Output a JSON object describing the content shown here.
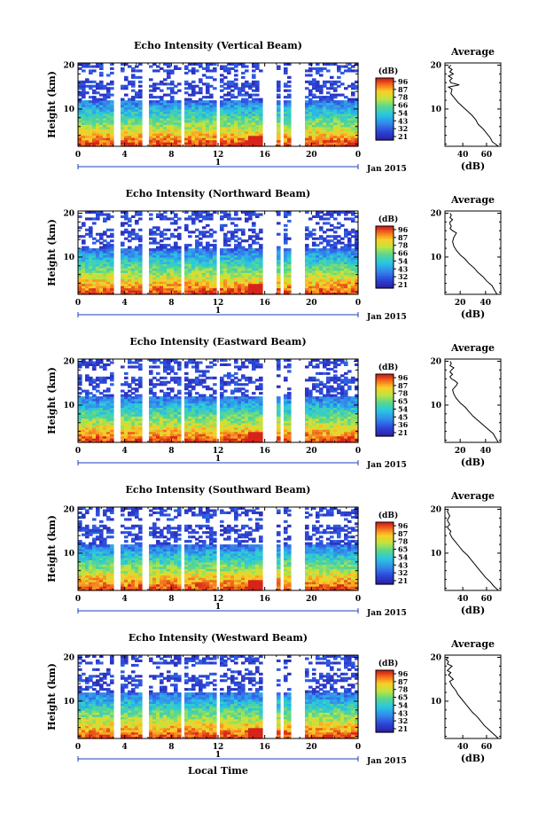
{
  "chart_data": [
    {
      "type": "heatmap",
      "title": "Echo Intensity (Vertical Beam)",
      "ylabel": "Height (km)",
      "xlabel": "",
      "x_ticks": [
        "0",
        "4",
        "8",
        "12",
        "16",
        "20",
        "0"
      ],
      "y_ticks": [
        "10",
        "20"
      ],
      "xlim": [
        0,
        24
      ],
      "ylim": [
        1.5,
        20.5
      ],
      "day_label": "1",
      "month_label": "Jan 2015",
      "gaps": [
        [
          3.1,
          3.6
        ],
        [
          5.6,
          6.1
        ],
        [
          8.8,
          9.2
        ],
        [
          12.0,
          12.3
        ],
        [
          15.9,
          17.1
        ],
        [
          17.4,
          17.6
        ],
        [
          17.8,
          18.0
        ],
        [
          18.3,
          19.3
        ]
      ],
      "colorbar": {
        "unit": "(dB)",
        "ticks": [
          "96",
          "87",
          "78",
          "66",
          "54",
          "43",
          "32",
          "21"
        ]
      },
      "average": {
        "title": "Average",
        "xlabel": "(dB)",
        "x_ticks": [
          "40",
          "60"
        ],
        "xlim": [
          25,
          72
        ],
        "y_ticks": [
          "10",
          "20"
        ],
        "height": [
          1.5,
          2.5,
          3.5,
          4.5,
          5.5,
          6.5,
          7.5,
          8.5,
          9.5,
          10.5,
          11.5,
          12.5,
          13.5,
          14.5,
          15.0,
          15.5,
          16.0,
          16.5,
          17.0,
          17.5,
          18.0,
          18.5,
          19.0,
          19.5,
          20.0
        ],
        "intensity": [
          70,
          65,
          63,
          60,
          57,
          53,
          51,
          48,
          44,
          40,
          36,
          33,
          30,
          31,
          28,
          37,
          30,
          29,
          31,
          28,
          32,
          29,
          31,
          28,
          30
        ]
      }
    },
    {
      "type": "heatmap",
      "title": "Echo Intensity (Northward Beam)",
      "ylabel": "Height (km)",
      "xlabel": "",
      "x_ticks": [
        "0",
        "4",
        "8",
        "12",
        "16",
        "20",
        "0"
      ],
      "y_ticks": [
        "10",
        "20"
      ],
      "xlim": [
        0,
        24
      ],
      "ylim": [
        1.5,
        20.5
      ],
      "day_label": "1",
      "month_label": "Jan 2015",
      "gaps": [
        [
          3.1,
          3.6
        ],
        [
          5.6,
          6.1
        ],
        [
          8.8,
          9.2
        ],
        [
          12.0,
          12.3
        ],
        [
          15.9,
          17.1
        ],
        [
          17.4,
          17.6
        ],
        [
          17.8,
          18.0
        ],
        [
          18.3,
          19.3
        ]
      ],
      "colorbar": {
        "unit": "(dB)",
        "ticks": [
          "96",
          "87",
          "78",
          "66",
          "54",
          "43",
          "32",
          "21"
        ]
      },
      "average": {
        "title": "Average",
        "xlabel": "(dB)",
        "x_ticks": [
          "20",
          "40"
        ],
        "xlim": [
          8,
          52
        ],
        "y_ticks": [
          "10",
          "20"
        ],
        "height": [
          1.5,
          2.5,
          3.5,
          4.5,
          5.5,
          6.5,
          7.5,
          8.5,
          9.5,
          10.5,
          11.5,
          12.5,
          13.5,
          14.5,
          15.0,
          15.5,
          16.0,
          16.5,
          17.0,
          17.5,
          18.0,
          18.5,
          19.0,
          19.5,
          20.0
        ],
        "intensity": [
          49,
          47,
          45,
          41,
          38,
          34,
          31,
          27,
          24,
          20,
          17,
          15,
          14,
          15,
          16,
          17,
          14,
          12,
          13,
          12,
          12,
          14,
          12,
          13,
          12
        ]
      }
    },
    {
      "type": "heatmap",
      "title": "Echo Intensity (Eastward Beam)",
      "ylabel": "Height (km)",
      "xlabel": "",
      "x_ticks": [
        "0",
        "4",
        "8",
        "12",
        "16",
        "20",
        "0"
      ],
      "y_ticks": [
        "10",
        "20"
      ],
      "xlim": [
        0,
        24
      ],
      "ylim": [
        1.5,
        20.5
      ],
      "day_label": "1",
      "month_label": "Jan 2015",
      "gaps": [
        [
          3.1,
          3.6
        ],
        [
          5.6,
          6.1
        ],
        [
          8.8,
          9.2
        ],
        [
          12.0,
          12.3
        ],
        [
          15.9,
          17.1
        ],
        [
          17.4,
          17.6
        ],
        [
          17.8,
          18.0
        ],
        [
          18.3,
          19.3
        ]
      ],
      "colorbar": {
        "unit": "(dB)",
        "ticks": [
          "96",
          "87",
          "78",
          "65",
          "54",
          "45",
          "36",
          "21"
        ]
      },
      "average": {
        "title": "Average",
        "xlabel": "(dB)",
        "x_ticks": [
          "20",
          "40"
        ],
        "xlim": [
          8,
          52
        ],
        "y_ticks": [
          "10",
          "20"
        ],
        "height": [
          1.5,
          2.5,
          3.5,
          4.5,
          5.5,
          6.5,
          7.5,
          8.5,
          9.5,
          10.5,
          11.5,
          12.5,
          13.5,
          14.5,
          15.0,
          15.5,
          16.0,
          16.5,
          17.0,
          17.5,
          18.0,
          18.5,
          19.0,
          19.5,
          20.0
        ],
        "intensity": [
          50,
          48,
          46,
          42,
          38,
          34,
          30,
          27,
          24,
          20,
          17,
          15,
          14,
          17,
          18,
          16,
          13,
          12,
          14,
          12,
          13,
          15,
          12,
          13,
          12
        ]
      }
    },
    {
      "type": "heatmap",
      "title": "Echo Intensity (Southward Beam)",
      "ylabel": "Height (km)",
      "xlabel": "",
      "x_ticks": [
        "0",
        "4",
        "8",
        "12",
        "16",
        "20",
        "0"
      ],
      "y_ticks": [
        "10",
        "20"
      ],
      "xlim": [
        0,
        24
      ],
      "ylim": [
        1.5,
        20.5
      ],
      "day_label": "1",
      "month_label": "Jan 2015",
      "gaps": [
        [
          3.1,
          3.6
        ],
        [
          5.6,
          6.1
        ],
        [
          8.8,
          9.2
        ],
        [
          12.0,
          12.3
        ],
        [
          15.9,
          17.1
        ],
        [
          17.4,
          17.6
        ],
        [
          17.8,
          18.0
        ],
        [
          18.3,
          19.3
        ]
      ],
      "colorbar": {
        "unit": "(dB)",
        "ticks": [
          "96",
          "87",
          "78",
          "65",
          "54",
          "43",
          "32",
          "21"
        ]
      },
      "average": {
        "title": "Average",
        "xlabel": "(dB)",
        "x_ticks": [
          "40",
          "60"
        ],
        "xlim": [
          25,
          72
        ],
        "y_ticks": [
          "10",
          "20"
        ],
        "height": [
          1.5,
          2.5,
          3.5,
          4.5,
          5.5,
          6.5,
          7.5,
          8.5,
          9.5,
          10.5,
          11.5,
          12.5,
          13.5,
          14.5,
          15.0,
          15.5,
          16.0,
          16.5,
          17.0,
          17.5,
          18.0,
          18.5,
          19.0,
          19.5,
          20.0
        ],
        "intensity": [
          70,
          66,
          63,
          59,
          56,
          53,
          50,
          47,
          44,
          40,
          37,
          34,
          31,
          29,
          30,
          28,
          27,
          29,
          28,
          27,
          28,
          29,
          28,
          27,
          28
        ]
      }
    },
    {
      "type": "heatmap",
      "title": "Echo Intensity (Westward Beam)",
      "ylabel": "Height (km)",
      "xlabel": "Local Time",
      "x_ticks": [
        "0",
        "4",
        "8",
        "12",
        "16",
        "20",
        "0"
      ],
      "y_ticks": [
        "10",
        "20"
      ],
      "xlim": [
        0,
        24
      ],
      "ylim": [
        1.5,
        20.5
      ],
      "day_label": "1",
      "month_label": "Jan 2015",
      "gaps": [
        [
          3.1,
          3.6
        ],
        [
          5.6,
          6.1
        ],
        [
          8.8,
          9.2
        ],
        [
          12.0,
          12.3
        ],
        [
          15.9,
          17.1
        ],
        [
          17.4,
          17.6
        ],
        [
          17.8,
          18.0
        ],
        [
          18.3,
          19.3
        ]
      ],
      "colorbar": {
        "unit": "(dB)",
        "ticks": [
          "96",
          "87",
          "78",
          "65",
          "54",
          "43",
          "32",
          "21"
        ]
      },
      "average": {
        "title": "Average",
        "xlabel": "(dB)",
        "x_ticks": [
          "40",
          "60"
        ],
        "xlim": [
          25,
          72
        ],
        "y_ticks": [
          "10",
          "20"
        ],
        "height": [
          1.5,
          2.5,
          3.5,
          4.5,
          5.5,
          6.5,
          7.5,
          8.5,
          9.5,
          10.5,
          11.5,
          12.5,
          13.5,
          14.5,
          15.0,
          15.5,
          16.0,
          16.5,
          17.0,
          17.5,
          18.0,
          18.5,
          19.0,
          19.5,
          20.0
        ],
        "intensity": [
          70,
          66,
          62,
          58,
          55,
          52,
          48,
          45,
          42,
          39,
          36,
          34,
          31,
          29,
          32,
          30,
          28,
          30,
          27,
          29,
          31,
          27,
          28,
          26,
          28
        ]
      }
    }
  ]
}
